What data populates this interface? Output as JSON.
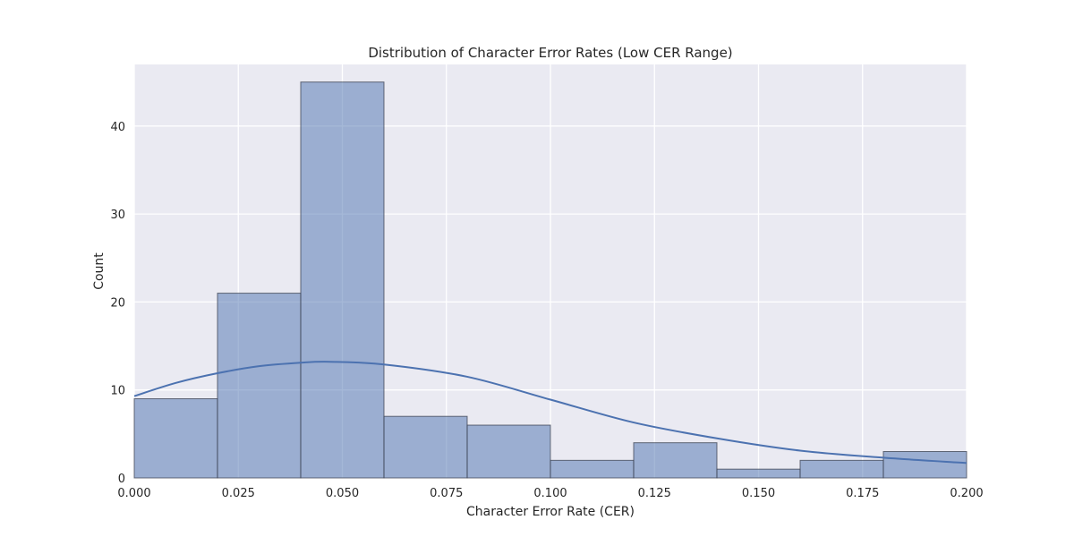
{
  "chart_data": {
    "type": "bar",
    "title": "Distribution of Character Error Rates (Low CER Range)",
    "xlabel": "Character Error Rate (CER)",
    "ylabel": "Count",
    "xlim": [
      0,
      0.2
    ],
    "ylim": [
      0,
      47
    ],
    "xticks": [
      0,
      0.025,
      0.05,
      0.075,
      0.1,
      0.125,
      0.15,
      0.175,
      0.2
    ],
    "xtick_labels": [
      "0.000",
      "0.025",
      "0.050",
      "0.075",
      "0.100",
      "0.125",
      "0.150",
      "0.175",
      "0.200"
    ],
    "yticks": [
      0,
      10,
      20,
      30,
      40
    ],
    "ytick_labels": [
      "0",
      "10",
      "20",
      "30",
      "40"
    ],
    "grid": true,
    "bins": [
      {
        "start": 0.0,
        "end": 0.02,
        "count": 9
      },
      {
        "start": 0.02,
        "end": 0.04,
        "count": 21
      },
      {
        "start": 0.04,
        "end": 0.06,
        "count": 45
      },
      {
        "start": 0.06,
        "end": 0.08,
        "count": 7
      },
      {
        "start": 0.08,
        "end": 0.1,
        "count": 6
      },
      {
        "start": 0.1,
        "end": 0.12,
        "count": 2
      },
      {
        "start": 0.12,
        "end": 0.14,
        "count": 4
      },
      {
        "start": 0.14,
        "end": 0.16,
        "count": 1
      },
      {
        "start": 0.16,
        "end": 0.18,
        "count": 2
      },
      {
        "start": 0.18,
        "end": 0.2,
        "count": 3
      }
    ],
    "kde_curve": {
      "x": [
        0.0,
        0.01,
        0.02,
        0.03,
        0.04,
        0.047,
        0.06,
        0.08,
        0.1,
        0.12,
        0.14,
        0.16,
        0.18,
        0.2
      ],
      "y": [
        9.3,
        10.8,
        11.9,
        12.7,
        13.1,
        13.2,
        12.9,
        11.5,
        8.9,
        6.3,
        4.5,
        3.1,
        2.3,
        1.7
      ]
    },
    "colors": {
      "plot_background": "#eaeaf2",
      "grid": "#ffffff",
      "bar_fill": "#4c72b0",
      "bar_fill_opacity": 0.5,
      "bar_edge": "#3a3f4f",
      "kde_line": "#4c72b0",
      "text": "#262626"
    }
  }
}
